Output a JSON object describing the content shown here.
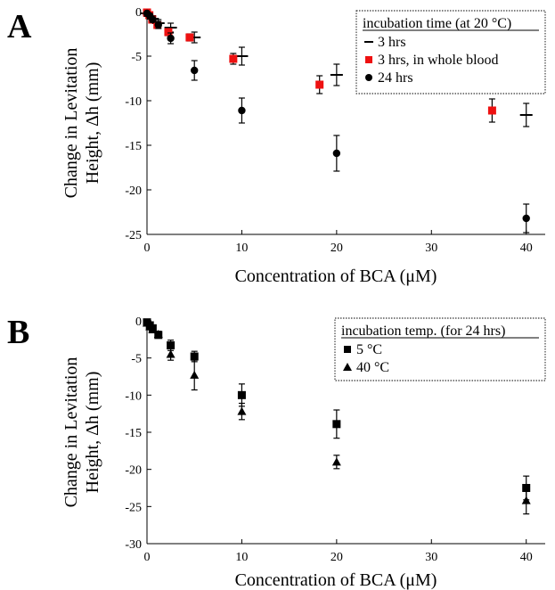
{
  "chart_data": [
    {
      "panel": "A",
      "type": "scatter",
      "xlabel": "Concentration of BCA (μM)",
      "ylabel_line1": "Change in Levitation",
      "ylabel_line2": "Height, Δh (mm)",
      "xlim": [
        0,
        42
      ],
      "ylim": [
        -25,
        0
      ],
      "xticks": [
        0,
        10,
        20,
        30,
        40
      ],
      "yticks": [
        0,
        -5,
        -10,
        -15,
        -20,
        -25
      ],
      "legend_title": "incubation time (at 20 °C)",
      "legend_position": "top-right",
      "series": [
        {
          "name": "3 hrs",
          "marker": "dash",
          "color": "#000000",
          "points": [
            {
              "x": 0,
              "y": -0.2,
              "err": 0.2
            },
            {
              "x": 0.3,
              "y": -0.5,
              "err": 0.3
            },
            {
              "x": 0.6,
              "y": -0.8,
              "err": 0.3
            },
            {
              "x": 1.2,
              "y": -1.3,
              "err": 0.4
            },
            {
              "x": 2.5,
              "y": -1.8,
              "err": 0.5
            },
            {
              "x": 5,
              "y": -2.9,
              "err": 0.6
            },
            {
              "x": 10,
              "y": -5.0,
              "err": 1.0
            },
            {
              "x": 20,
              "y": -7.1,
              "err": 1.2
            },
            {
              "x": 40,
              "y": -11.6,
              "err": 1.3
            }
          ]
        },
        {
          "name": "3 hrs, in whole blood",
          "marker": "square",
          "color": "#ee1111",
          "points": [
            {
              "x": 0,
              "y": -0.1,
              "err": 0.2
            },
            {
              "x": 0.25,
              "y": -0.4,
              "err": 0.2
            },
            {
              "x": 0.55,
              "y": -0.9,
              "err": 0.3
            },
            {
              "x": 1.1,
              "y": -1.5,
              "err": 0.3
            },
            {
              "x": 2.25,
              "y": -2.3,
              "err": 0.4
            },
            {
              "x": 4.5,
              "y": -2.9,
              "err": 0.4
            },
            {
              "x": 9.1,
              "y": -5.3,
              "err": 0.6
            },
            {
              "x": 18.2,
              "y": -8.2,
              "err": 1.0
            },
            {
              "x": 36.4,
              "y": -11.1,
              "err": 1.3
            }
          ]
        },
        {
          "name": "24 hrs",
          "marker": "circle",
          "color": "#000000",
          "points": [
            {
              "x": 0,
              "y": -0.2,
              "err": 0.2
            },
            {
              "x": 0.3,
              "y": -0.5,
              "err": 0.3
            },
            {
              "x": 0.6,
              "y": -0.9,
              "err": 0.3
            },
            {
              "x": 1.2,
              "y": -1.5,
              "err": 0.4
            },
            {
              "x": 2.5,
              "y": -3.0,
              "err": 0.6
            },
            {
              "x": 5,
              "y": -6.6,
              "err": 1.1
            },
            {
              "x": 10,
              "y": -11.1,
              "err": 1.4
            },
            {
              "x": 20,
              "y": -15.9,
              "err": 2.0
            },
            {
              "x": 40,
              "y": -23.2,
              "err": 1.6
            }
          ]
        }
      ]
    },
    {
      "panel": "B",
      "type": "scatter",
      "xlabel": "Concentration of BCA (μM)",
      "ylabel_line1": "Change in Levitation",
      "ylabel_line2": "Height, Δh (mm)",
      "xlim": [
        0,
        42
      ],
      "ylim": [
        -30,
        0
      ],
      "xticks": [
        0,
        10,
        20,
        30,
        40
      ],
      "yticks": [
        0,
        -5,
        -10,
        -15,
        -20,
        -25,
        -30
      ],
      "legend_title": "incubation temp. (for 24 hrs)",
      "legend_position": "top-right",
      "series": [
        {
          "name": "5 °C",
          "marker": "square",
          "color": "#000000",
          "points": [
            {
              "x": 0,
              "y": -0.2,
              "err": 0.3
            },
            {
              "x": 0.3,
              "y": -0.6,
              "err": 0.3
            },
            {
              "x": 0.6,
              "y": -1.0,
              "err": 0.4
            },
            {
              "x": 1.2,
              "y": -1.9,
              "err": 0.4
            },
            {
              "x": 2.5,
              "y": -3.3,
              "err": 0.7
            },
            {
              "x": 5,
              "y": -4.8,
              "err": 0.7
            },
            {
              "x": 10,
              "y": -10.0,
              "err": 1.5
            },
            {
              "x": 20,
              "y": -13.9,
              "err": 1.9
            },
            {
              "x": 40,
              "y": -22.5,
              "err": 1.6
            }
          ]
        },
        {
          "name": "40 °C",
          "marker": "triangle",
          "color": "#000000",
          "points": [
            {
              "x": 0,
              "y": -0.3,
              "err": 0.3
            },
            {
              "x": 0.3,
              "y": -0.8,
              "err": 0.3
            },
            {
              "x": 0.6,
              "y": -1.2,
              "err": 0.4
            },
            {
              "x": 1.2,
              "y": -1.8,
              "err": 0.4
            },
            {
              "x": 2.5,
              "y": -4.5,
              "err": 0.8
            },
            {
              "x": 5,
              "y": -7.3,
              "err": 2.0
            },
            {
              "x": 10,
              "y": -12.2,
              "err": 1.1
            },
            {
              "x": 20,
              "y": -19.0,
              "err": 0.9
            },
            {
              "x": 40,
              "y": -24.2,
              "err": 1.8
            }
          ]
        }
      ]
    }
  ]
}
